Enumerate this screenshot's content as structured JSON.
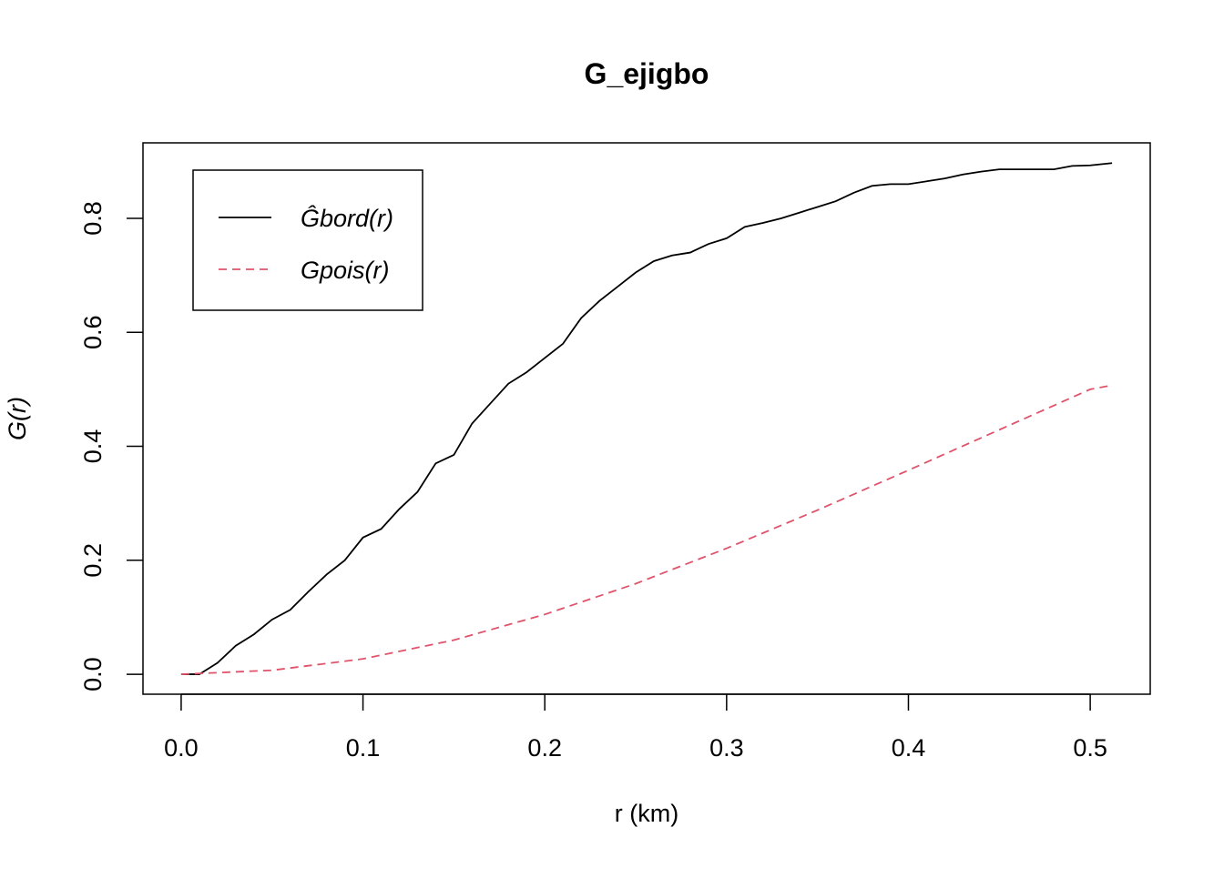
{
  "chart_data": {
    "type": "line",
    "title": "G_ejigbo",
    "xlabel": "r (km)",
    "ylabel": "G(r)",
    "xlim": [
      -0.021,
      0.533
    ],
    "ylim": [
      -0.035,
      0.9325
    ],
    "xticks": [
      {
        "value": 0,
        "label": "0.0"
      },
      0.1,
      0.2,
      0.3,
      0.4,
      0.5
    ],
    "yticks": [
      {
        "value": 0,
        "label": "0.0"
      },
      0.2,
      0.4,
      0.6,
      0.8
    ],
    "legend": "top-left",
    "series": [
      {
        "name": "Ĝbord(r)",
        "color": "#000000",
        "dash": "solid",
        "x": [
          0,
          0.01,
          0.02,
          0.03,
          0.04,
          0.05,
          0.06,
          0.07,
          0.08,
          0.09,
          0.1,
          0.11,
          0.12,
          0.13,
          0.14,
          0.15,
          0.16,
          0.17,
          0.18,
          0.19,
          0.2,
          0.21,
          0.22,
          0.23,
          0.24,
          0.25,
          0.26,
          0.27,
          0.28,
          0.29,
          0.3,
          0.31,
          0.32,
          0.33,
          0.34,
          0.35,
          0.36,
          0.37,
          0.38,
          0.39,
          0.4,
          0.41,
          0.42,
          0.43,
          0.44,
          0.45,
          0.46,
          0.47,
          0.48,
          0.49,
          0.5,
          0.512
        ],
        "values": [
          0,
          0,
          0.02,
          0.05,
          0.07,
          0.096,
          0.113,
          0.145,
          0.175,
          0.2,
          0.24,
          0.255,
          0.29,
          0.32,
          0.37,
          0.385,
          0.44,
          0.475,
          0.51,
          0.53,
          0.555,
          0.58,
          0.625,
          0.655,
          0.68,
          0.705,
          0.725,
          0.735,
          0.74,
          0.755,
          0.765,
          0.785,
          0.792,
          0.8,
          0.81,
          0.82,
          0.83,
          0.845,
          0.857,
          0.86,
          0.86,
          0.865,
          0.87,
          0.877,
          0.882,
          0.886,
          0.886,
          0.886,
          0.886,
          0.892,
          0.893,
          0.897
        ]
      },
      {
        "name": "Gpois(r)",
        "color": "#df536b",
        "dash": "dashed",
        "x": [
          0,
          0.05,
          0.1,
          0.15,
          0.2,
          0.25,
          0.3,
          0.35,
          0.4,
          0.45,
          0.5,
          0.512
        ],
        "values": [
          0,
          0.007,
          0.027,
          0.06,
          0.105,
          0.159,
          0.221,
          0.288,
          0.358,
          0.429,
          0.5,
          0.507
        ]
      }
    ]
  }
}
